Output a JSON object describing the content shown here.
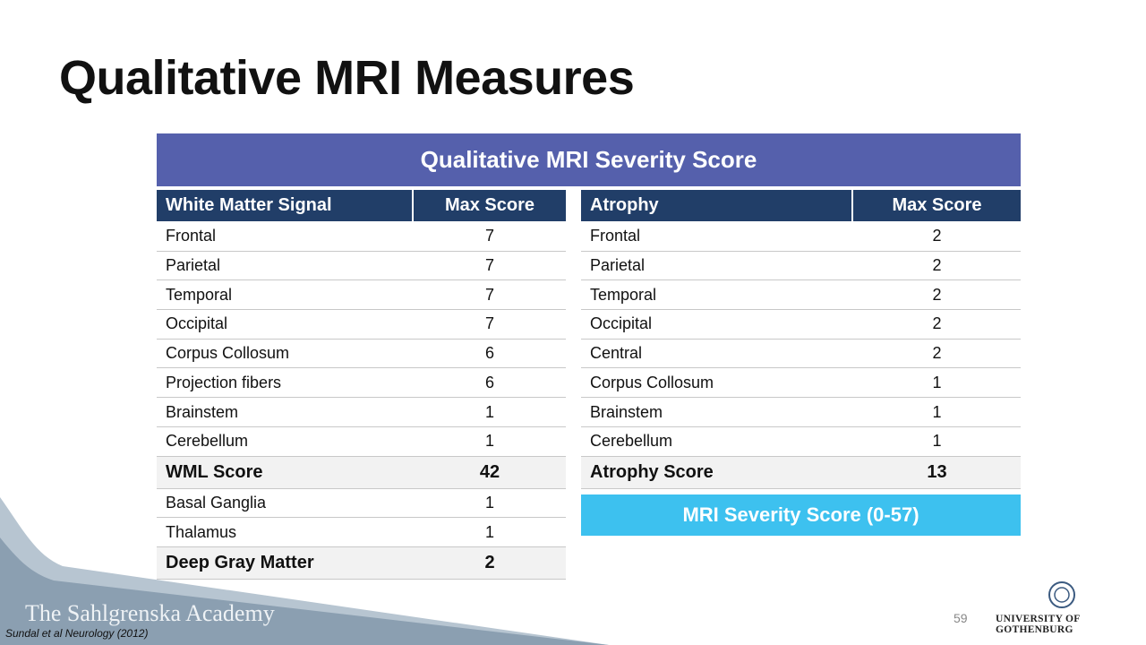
{
  "title": "Qualitative MRI Measures",
  "banner": "Qualitative MRI Severity Score",
  "left_table": {
    "header": [
      "White Matter Signal",
      "Max Score"
    ],
    "groups": [
      {
        "rows": [
          [
            "Frontal",
            7
          ],
          [
            "Parietal",
            7
          ],
          [
            "Temporal",
            7
          ],
          [
            "Occipital",
            7
          ],
          [
            "Corpus Collosum",
            6
          ],
          [
            "Projection fibers",
            6
          ],
          [
            "Brainstem",
            1
          ],
          [
            "Cerebellum",
            1
          ]
        ],
        "total": [
          "WML Score",
          42
        ]
      },
      {
        "rows": [
          [
            "Basal Ganglia",
            1
          ],
          [
            "Thalamus",
            1
          ]
        ],
        "total": [
          "Deep Gray Matter",
          2
        ]
      }
    ]
  },
  "right_table": {
    "header": [
      "Atrophy",
      "Max Score"
    ],
    "groups": [
      {
        "rows": [
          [
            "Frontal",
            2
          ],
          [
            "Parietal",
            2
          ],
          [
            "Temporal",
            2
          ],
          [
            "Occipital",
            2
          ],
          [
            "Central",
            2
          ],
          [
            "Corpus Collosum",
            1
          ],
          [
            "Brainstem",
            1
          ],
          [
            "Cerebellum",
            1
          ]
        ],
        "total": [
          "Atrophy Score",
          13
        ]
      }
    ]
  },
  "severity_box": "MRI Severity Score (0-57)",
  "footer": {
    "academy": "The Sahlgrenska Academy",
    "citation": "Sundal et al Neurology (2012)",
    "page_number": 59,
    "university": "UNIVERSITY OF GOTHENBURG"
  }
}
